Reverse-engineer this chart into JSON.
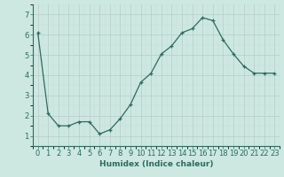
{
  "x": [
    0,
    1,
    2,
    3,
    4,
    5,
    6,
    7,
    8,
    9,
    10,
    11,
    12,
    13,
    14,
    15,
    16,
    17,
    18,
    19,
    20,
    21,
    22,
    23
  ],
  "y": [
    6.1,
    2.1,
    1.5,
    1.5,
    1.7,
    1.7,
    1.1,
    1.3,
    1.85,
    2.55,
    3.65,
    4.1,
    5.05,
    5.45,
    6.1,
    6.3,
    6.85,
    6.7,
    5.75,
    5.05,
    4.45,
    4.1,
    4.1,
    4.1
  ],
  "line_color": "#2e6b5e",
  "marker": "+",
  "bg_color": "#cce8e0",
  "grid_color_major": "#b0c8c0",
  "grid_color_minor": "#c8ddd8",
  "xlabel": "Humidex (Indice chaleur)",
  "xlabel_fontsize": 6.5,
  "ylabel_ticks": [
    1,
    2,
    3,
    4,
    5,
    6,
    7
  ],
  "xlim": [
    -0.5,
    23.5
  ],
  "ylim": [
    0.7,
    7.4
  ],
  "tick_fontsize": 6.0,
  "text_color": "#2e6b5e",
  "spine_color": "#2e6b5e"
}
